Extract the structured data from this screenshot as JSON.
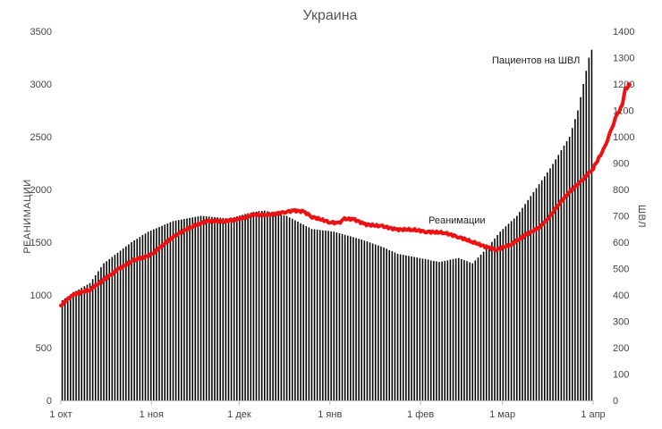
{
  "chart_data": {
    "type": "bar",
    "title": "Украина",
    "ylabel_left": "РЕАНИМАЦИИ",
    "ylabel_right": "ШВЛ",
    "y_left": {
      "min": 0,
      "max": 3500,
      "ticks": [
        0,
        500,
        1000,
        1500,
        2000,
        2500,
        3000,
        3500
      ]
    },
    "y_right": {
      "min": 0,
      "max": 1400,
      "ticks": [
        0,
        100,
        200,
        300,
        400,
        500,
        600,
        700,
        800,
        900,
        1000,
        1100,
        1200,
        1300,
        1400
      ]
    },
    "x_ticks": [
      "1 окт",
      "1 ноя",
      "1 дек",
      "1 янв",
      "1 фев",
      "1 мар",
      "1 апр"
    ],
    "annotations": {
      "bars": "Пациентов на ШВЛ",
      "line": "Реанимации"
    },
    "series": [
      {
        "name": "Пациентов на ШВЛ",
        "axis": "right",
        "kind": "bar",
        "color": "#000000",
        "anchors": [
          [
            0,
            380
          ],
          [
            5,
            415
          ],
          [
            10,
            445
          ],
          [
            15,
            520
          ],
          [
            20,
            560
          ],
          [
            25,
            600
          ],
          [
            31,
            640
          ],
          [
            40,
            680
          ],
          [
            50,
            700
          ],
          [
            61,
            690
          ],
          [
            70,
            715
          ],
          [
            75,
            720
          ],
          [
            78,
            710
          ],
          [
            83,
            700
          ],
          [
            92,
            650
          ],
          [
            100,
            640
          ],
          [
            110,
            610
          ],
          [
            118,
            580
          ],
          [
            123,
            556
          ],
          [
            131,
            540
          ],
          [
            138,
            525
          ],
          [
            145,
            540
          ],
          [
            150,
            520
          ],
          [
            155,
            575
          ],
          [
            160,
            640
          ],
          [
            166,
            700
          ],
          [
            172,
            790
          ],
          [
            178,
            880
          ],
          [
            185,
            1000
          ],
          [
            188,
            1100
          ],
          [
            190,
            1200
          ],
          [
            192,
            1300
          ],
          [
            193,
            1330
          ]
        ],
        "values": [
          380,
          387,
          394,
          401,
          408,
          415,
          421,
          427,
          433,
          439,
          445,
          460,
          475,
          490,
          505,
          520,
          528,
          536,
          544,
          552,
          560,
          568,
          576,
          584,
          592,
          600,
          607,
          613,
          620,
          627,
          633,
          640,
          644,
          649,
          653,
          658,
          662,
          667,
          671,
          676,
          680,
          682,
          684,
          686,
          688,
          690,
          692,
          694,
          696,
          698,
          700,
          699,
          698,
          697,
          696,
          695,
          694,
          693,
          692,
          691,
          690,
          693,
          695,
          698,
          701,
          704,
          707,
          710,
          712,
          715,
          716,
          718,
          719,
          720,
          717,
          713,
          710,
          708,
          706,
          704,
          702,
          700,
          694,
          689,
          683,
          678,
          672,
          667,
          661,
          656,
          650,
          649,
          648,
          646,
          645,
          644,
          643,
          641,
          640,
          637,
          634,
          631,
          628,
          625,
          622,
          619,
          616,
          613,
          610,
          606,
          603,
          599,
          595,
          591,
          588,
          584,
          580,
          575,
          570,
          566,
          561,
          556,
          554,
          552,
          550,
          548,
          546,
          544,
          542,
          540,
          538,
          536,
          534,
          531,
          529,
          527,
          525,
          527,
          529,
          531,
          534,
          536,
          538,
          540,
          536,
          532,
          528,
          524,
          520,
          531,
          542,
          553,
          564,
          575,
          588,
          601,
          614,
          627,
          640,
          650,
          660,
          670,
          680,
          690,
          700,
          715,
          730,
          745,
          760,
          775,
          790,
          805,
          820,
          835,
          850,
          865,
          880,
          897,
          914,
          931,
          949,
          966,
          983,
          1000,
          1033,
          1067,
          1100,
          1150,
          1200,
          1250,
          1300,
          1330
        ]
      },
      {
        "name": "Реанимации",
        "axis": "left",
        "kind": "line",
        "color": "#ee1111",
        "anchors": [
          [
            0,
            900
          ],
          [
            4,
            1000
          ],
          [
            10,
            1050
          ],
          [
            15,
            1150
          ],
          [
            20,
            1250
          ],
          [
            25,
            1330
          ],
          [
            31,
            1380
          ],
          [
            35,
            1480
          ],
          [
            40,
            1580
          ],
          [
            45,
            1650
          ],
          [
            50,
            1700
          ],
          [
            56,
            1700
          ],
          [
            61,
            1720
          ],
          [
            66,
            1760
          ],
          [
            70,
            1760
          ],
          [
            74,
            1770
          ],
          [
            77,
            1790
          ],
          [
            80,
            1800
          ],
          [
            83,
            1790
          ],
          [
            86,
            1740
          ],
          [
            92,
            1690
          ],
          [
            95,
            1680
          ],
          [
            97,
            1720
          ],
          [
            100,
            1720
          ],
          [
            104,
            1670
          ],
          [
            110,
            1650
          ],
          [
            115,
            1620
          ],
          [
            120,
            1620
          ],
          [
            125,
            1600
          ],
          [
            131,
            1590
          ],
          [
            136,
            1550
          ],
          [
            141,
            1500
          ],
          [
            146,
            1450
          ],
          [
            149,
            1430
          ],
          [
            154,
            1480
          ],
          [
            159,
            1570
          ],
          [
            163,
            1630
          ],
          [
            166,
            1700
          ],
          [
            170,
            1850
          ],
          [
            174,
            1980
          ],
          [
            178,
            2080
          ],
          [
            182,
            2200
          ],
          [
            186,
            2400
          ],
          [
            188,
            2550
          ],
          [
            190,
            2700
          ],
          [
            192,
            2800
          ],
          [
            193,
            2950
          ],
          [
            195,
            3000
          ]
        ]
      }
    ]
  }
}
